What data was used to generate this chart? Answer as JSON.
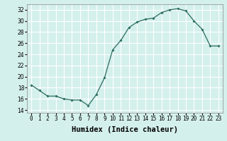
{
  "x": [
    0,
    1,
    2,
    3,
    4,
    5,
    6,
    7,
    8,
    9,
    10,
    11,
    12,
    13,
    14,
    15,
    16,
    17,
    18,
    19,
    20,
    21,
    22,
    23
  ],
  "y_values": [
    18.5,
    17.5,
    16.5,
    16.5,
    16.0,
    15.8,
    15.8,
    14.8,
    16.8,
    19.8,
    24.8,
    26.5,
    28.8,
    29.8,
    30.3,
    30.5,
    31.5,
    32.0,
    32.2,
    31.8,
    30.0,
    28.5,
    25.5,
    25.5
  ],
  "xlabel": "Humidex (Indice chaleur)",
  "xlim": [
    -0.5,
    23.5
  ],
  "ylim": [
    13.5,
    33.0
  ],
  "yticks": [
    14,
    16,
    18,
    20,
    22,
    24,
    26,
    28,
    30,
    32
  ],
  "xticks": [
    0,
    1,
    2,
    3,
    4,
    5,
    6,
    7,
    8,
    9,
    10,
    11,
    12,
    13,
    14,
    15,
    16,
    17,
    18,
    19,
    20,
    21,
    22,
    23
  ],
  "line_color": "#2a6b5e",
  "marker_color": "#2a6b5e",
  "bg_color": "#d4f0ec",
  "grid_color": "#ffffff",
  "tick_label_fontsize": 5.5,
  "xlabel_fontsize": 7.5
}
